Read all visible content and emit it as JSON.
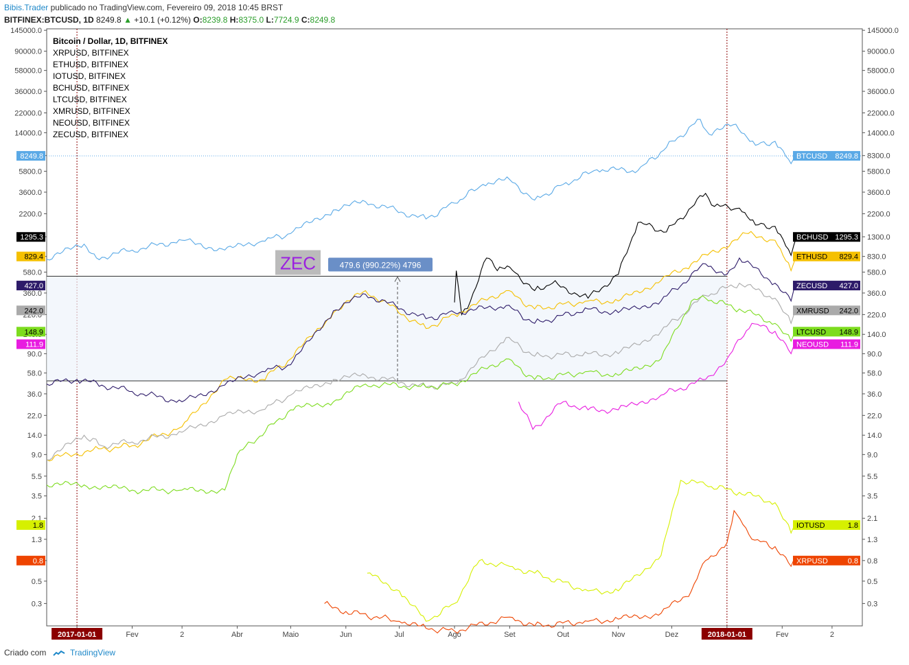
{
  "header": {
    "brand": "Bibis.Trader",
    "published": "publicado no TradingView.com, Fevereiro 09, 2018 10:45 BRST",
    "symbol": "BITFINEX:BTCUSD, 1D",
    "last": "8249.8",
    "change": "+10.1 (+0.12%)",
    "o_label": "O:",
    "o": "8239.8",
    "h_label": "H:",
    "h": "8375.0",
    "l_label": "L:",
    "l": "7724.9",
    "c_label": "C:",
    "c": "8249.8"
  },
  "footer": {
    "created": "Criado com",
    "brand": "TradingView"
  },
  "colors": {
    "accent": "#1e88c9",
    "up": "#2a9d2a",
    "marker": "#8b0000"
  },
  "chart_data": {
    "type": "line",
    "y_scale": "log",
    "ylim": [
      0.18,
      150000
    ],
    "y_ticks": [
      "145000.0",
      "90000.0",
      "58000.0",
      "36000.0",
      "22000.0",
      "14000.0",
      "8300.0",
      "5800.0",
      "3600.0",
      "2200.0",
      "1300.0",
      "830.0",
      "580.0",
      "360.0",
      "220.0",
      "140.0",
      "90.0",
      "58.0",
      "36.0",
      "22.0",
      "14.0",
      "9.0",
      "5.5",
      "3.5",
      "2.1",
      "1.3",
      "0.8",
      "0.5",
      "0.3"
    ],
    "y_tick_values": [
      145000,
      90000,
      58000,
      36000,
      22000,
      14000,
      8300,
      5800,
      3600,
      2200,
      1300,
      830,
      580,
      360,
      220,
      140,
      90,
      58,
      36,
      22,
      14,
      9,
      5.5,
      3.5,
      2.1,
      1.3,
      0.8,
      0.5,
      0.3
    ],
    "x_ticks": [
      {
        "label": "2017-01-01",
        "date": "2017-01-01",
        "highlight": true
      },
      {
        "label": "Fev",
        "date": "2017-02-01"
      },
      {
        "label": "2",
        "date": "2017-03-01"
      },
      {
        "label": "Abr",
        "date": "2017-04-01"
      },
      {
        "label": "Maio",
        "date": "2017-05-01"
      },
      {
        "label": "Jun",
        "date": "2017-06-01"
      },
      {
        "label": "Jul",
        "date": "2017-07-01"
      },
      {
        "label": "Ago",
        "date": "2017-08-01"
      },
      {
        "label": "Set",
        "date": "2017-09-01"
      },
      {
        "label": "Out",
        "date": "2017-10-01"
      },
      {
        "label": "Nov",
        "date": "2017-11-01"
      },
      {
        "label": "Dez",
        "date": "2017-12-01"
      },
      {
        "label": "2018-01-01",
        "date": "2018-01-01",
        "highlight": true
      },
      {
        "label": "Fev",
        "date": "2018-02-01"
      },
      {
        "label": "2",
        "date": "2018-03-01"
      }
    ],
    "x_range": [
      "2016-12-15",
      "2018-03-18"
    ],
    "vertical_markers": [
      "2017-01-01",
      "2018-01-01"
    ],
    "legend_title": "Bitcoin / Dollar, 1D, BITFINEX",
    "legend": [
      "XRPUSD, BITFINEX",
      "ETHUSD, BITFINEX",
      "IOTUSD, BITFINEX",
      "BCHUSD, BITFINEX",
      "LTCUSD, BITFINEX",
      "XMRUSD, BITFINEX",
      "NEOUSD, BITFINEX",
      "ZECUSD, BITFINEX"
    ],
    "legend_position": "top-left",
    "grid": false,
    "series": [
      {
        "name": "BTCUSD",
        "color": "#5aa9e6",
        "last": "8249.8",
        "price_line": true,
        "points": [
          [
            "2016-12-15",
            780
          ],
          [
            "2017-01-05",
            1100
          ],
          [
            "2017-01-12",
            800
          ],
          [
            "2017-02-01",
            960
          ],
          [
            "2017-03-01",
            1200
          ],
          [
            "2017-03-25",
            960
          ],
          [
            "2017-04-15",
            1180
          ],
          [
            "2017-05-01",
            1400
          ],
          [
            "2017-05-25",
            2400
          ],
          [
            "2017-06-12",
            2900
          ],
          [
            "2017-07-16",
            1950
          ],
          [
            "2017-08-01",
            2800
          ],
          [
            "2017-08-17",
            4300
          ],
          [
            "2017-09-01",
            4800
          ],
          [
            "2017-09-15",
            3000
          ],
          [
            "2017-10-01",
            4300
          ],
          [
            "2017-10-20",
            6000
          ],
          [
            "2017-11-12",
            5900
          ],
          [
            "2017-11-28",
            10000
          ],
          [
            "2017-12-17",
            19000
          ],
          [
            "2017-12-22",
            13500
          ],
          [
            "2018-01-06",
            17000
          ],
          [
            "2018-01-17",
            10500
          ],
          [
            "2018-01-28",
            11500
          ],
          [
            "2018-02-06",
            6900
          ],
          [
            "2018-02-09",
            8249.8
          ]
        ]
      },
      {
        "name": "BCHUSD",
        "color": "#000000",
        "last": "1295.3",
        "points": [
          [
            "2017-08-01",
            290
          ],
          [
            "2017-08-02",
            600
          ],
          [
            "2017-08-05",
            220
          ],
          [
            "2017-08-10",
            300
          ],
          [
            "2017-08-19",
            800
          ],
          [
            "2017-08-25",
            600
          ],
          [
            "2017-09-01",
            650
          ],
          [
            "2017-09-15",
            380
          ],
          [
            "2017-09-25",
            450
          ],
          [
            "2017-10-15",
            320
          ],
          [
            "2017-11-01",
            550
          ],
          [
            "2017-11-12",
            1800
          ],
          [
            "2017-11-28",
            1450
          ],
          [
            "2017-12-20",
            3500
          ],
          [
            "2017-12-25",
            2600
          ],
          [
            "2018-01-08",
            2500
          ],
          [
            "2018-01-17",
            1700
          ],
          [
            "2018-01-28",
            1650
          ],
          [
            "2018-02-06",
            850
          ],
          [
            "2018-02-09",
            1295.3
          ]
        ]
      },
      {
        "name": "ETHUSD",
        "color": "#f5c000",
        "last": "829.4",
        "points": [
          [
            "2016-12-15",
            8
          ],
          [
            "2017-01-10",
            10
          ],
          [
            "2017-02-01",
            11
          ],
          [
            "2017-03-01",
            17
          ],
          [
            "2017-03-25",
            50
          ],
          [
            "2017-04-15",
            50
          ],
          [
            "2017-05-01",
            80
          ],
          [
            "2017-05-25",
            230
          ],
          [
            "2017-06-12",
            380
          ],
          [
            "2017-07-16",
            160
          ],
          [
            "2017-08-01",
            220
          ],
          [
            "2017-08-30",
            380
          ],
          [
            "2017-09-15",
            250
          ],
          [
            "2017-10-15",
            300
          ],
          [
            "2017-11-01",
            300
          ],
          [
            "2017-11-25",
            480
          ],
          [
            "2017-12-12",
            700
          ],
          [
            "2018-01-13",
            1400
          ],
          [
            "2018-01-28",
            1200
          ],
          [
            "2018-02-06",
            600
          ],
          [
            "2018-02-09",
            829.4
          ]
        ]
      },
      {
        "name": "ZECUSD",
        "color": "#2d1b69",
        "last": "427.0",
        "points": [
          [
            "2016-12-15",
            45
          ],
          [
            "2017-01-01",
            50
          ],
          [
            "2017-01-15",
            44
          ],
          [
            "2017-02-01",
            38
          ],
          [
            "2017-03-01",
            30
          ],
          [
            "2017-03-25",
            44
          ],
          [
            "2017-04-15",
            60
          ],
          [
            "2017-05-01",
            70
          ],
          [
            "2017-05-25",
            240
          ],
          [
            "2017-06-12",
            350
          ],
          [
            "2017-07-16",
            200
          ],
          [
            "2017-08-01",
            230
          ],
          [
            "2017-08-30",
            270
          ],
          [
            "2017-09-15",
            180
          ],
          [
            "2017-10-15",
            250
          ],
          [
            "2017-11-01",
            230
          ],
          [
            "2017-11-25",
            300
          ],
          [
            "2017-12-20",
            700
          ],
          [
            "2018-01-01",
            550
          ],
          [
            "2018-01-08",
            800
          ],
          [
            "2018-01-28",
            450
          ],
          [
            "2018-02-06",
            300
          ],
          [
            "2018-02-09",
            427
          ]
        ]
      },
      {
        "name": "XMRUSD",
        "color": "#aaaaaa",
        "last": "242.0",
        "points": [
          [
            "2016-12-15",
            8
          ],
          [
            "2017-01-05",
            14
          ],
          [
            "2017-01-15",
            11
          ],
          [
            "2017-02-01",
            12
          ],
          [
            "2017-03-01",
            15
          ],
          [
            "2017-03-25",
            22
          ],
          [
            "2017-04-15",
            25
          ],
          [
            "2017-05-01",
            35
          ],
          [
            "2017-05-25",
            50
          ],
          [
            "2017-06-12",
            55
          ],
          [
            "2017-07-16",
            42
          ],
          [
            "2017-08-01",
            45
          ],
          [
            "2017-08-30",
            130
          ],
          [
            "2017-09-15",
            85
          ],
          [
            "2017-10-15",
            90
          ],
          [
            "2017-11-01",
            90
          ],
          [
            "2017-11-25",
            150
          ],
          [
            "2017-12-20",
            340
          ],
          [
            "2018-01-08",
            450
          ],
          [
            "2018-01-28",
            320
          ],
          [
            "2018-02-06",
            180
          ],
          [
            "2018-02-09",
            242
          ]
        ]
      },
      {
        "name": "LTCUSD",
        "color": "#7ddc1f",
        "last": "148.9",
        "points": [
          [
            "2016-12-15",
            4.5
          ],
          [
            "2017-01-05",
            4.5
          ],
          [
            "2017-02-01",
            4
          ],
          [
            "2017-03-01",
            4
          ],
          [
            "2017-03-25",
            4
          ],
          [
            "2017-04-01",
            9
          ],
          [
            "2017-05-01",
            25
          ],
          [
            "2017-05-25",
            30
          ],
          [
            "2017-06-12",
            45
          ],
          [
            "2017-07-16",
            42
          ],
          [
            "2017-08-01",
            45
          ],
          [
            "2017-08-30",
            80
          ],
          [
            "2017-09-15",
            50
          ],
          [
            "2017-10-15",
            60
          ],
          [
            "2017-11-01",
            55
          ],
          [
            "2017-11-25",
            80
          ],
          [
            "2017-12-12",
            300
          ],
          [
            "2017-12-20",
            320
          ],
          [
            "2018-01-08",
            250
          ],
          [
            "2018-01-28",
            180
          ],
          [
            "2018-02-06",
            120
          ],
          [
            "2018-02-09",
            148.9
          ]
        ]
      },
      {
        "name": "NEOUSD",
        "color": "#e81ce0",
        "last": "111.9",
        "points": [
          [
            "2017-09-06",
            30
          ],
          [
            "2017-09-14",
            16
          ],
          [
            "2017-10-01",
            30
          ],
          [
            "2017-10-15",
            25
          ],
          [
            "2017-11-01",
            25
          ],
          [
            "2017-11-25",
            35
          ],
          [
            "2017-12-20",
            50
          ],
          [
            "2018-01-01",
            80
          ],
          [
            "2018-01-15",
            180
          ],
          [
            "2018-01-28",
            150
          ],
          [
            "2018-02-06",
            90
          ],
          [
            "2018-02-09",
            111.9
          ]
        ]
      },
      {
        "name": "IOTUSD",
        "color": "#d6f000",
        "last": "1.8",
        "points": [
          [
            "2017-06-13",
            0.6
          ],
          [
            "2017-07-01",
            0.4
          ],
          [
            "2017-07-16",
            0.2
          ],
          [
            "2017-08-01",
            0.3
          ],
          [
            "2017-08-15",
            0.8
          ],
          [
            "2017-09-01",
            0.7
          ],
          [
            "2017-09-15",
            0.6
          ],
          [
            "2017-10-15",
            0.4
          ],
          [
            "2017-11-01",
            0.4
          ],
          [
            "2017-11-25",
            0.9
          ],
          [
            "2017-12-06",
            5
          ],
          [
            "2017-12-20",
            4.5
          ],
          [
            "2018-01-08",
            3.8
          ],
          [
            "2018-01-28",
            3
          ],
          [
            "2018-02-06",
            1.5
          ],
          [
            "2018-02-09",
            1.8
          ]
        ]
      },
      {
        "name": "XRPUSD",
        "color": "#ee4400",
        "last": "0.8",
        "points": [
          [
            "2017-05-20",
            0.3
          ],
          [
            "2017-06-01",
            0.25
          ],
          [
            "2017-07-01",
            0.2
          ],
          [
            "2017-07-16",
            0.17
          ],
          [
            "2017-08-01",
            0.16
          ],
          [
            "2017-09-01",
            0.22
          ],
          [
            "2017-09-15",
            0.18
          ],
          [
            "2017-10-15",
            0.2
          ],
          [
            "2017-11-01",
            0.21
          ],
          [
            "2017-11-25",
            0.24
          ],
          [
            "2017-12-12",
            0.4
          ],
          [
            "2017-12-20",
            0.8
          ],
          [
            "2018-01-01",
            1.2
          ],
          [
            "2018-01-05",
            2.5
          ],
          [
            "2018-01-15",
            1.3
          ],
          [
            "2018-01-28",
            1.1
          ],
          [
            "2018-02-06",
            0.7
          ],
          [
            "2018-02-09",
            0.8
          ]
        ]
      }
    ],
    "annotation": {
      "label": "ZEC",
      "measure": "479.6 (990.22%) 4796",
      "from": {
        "date": "2016-12-15",
        "value": 48.4
      },
      "to": {
        "date": "2018-01-01",
        "value": 528
      },
      "arrow_date": "2017-06-30"
    }
  }
}
